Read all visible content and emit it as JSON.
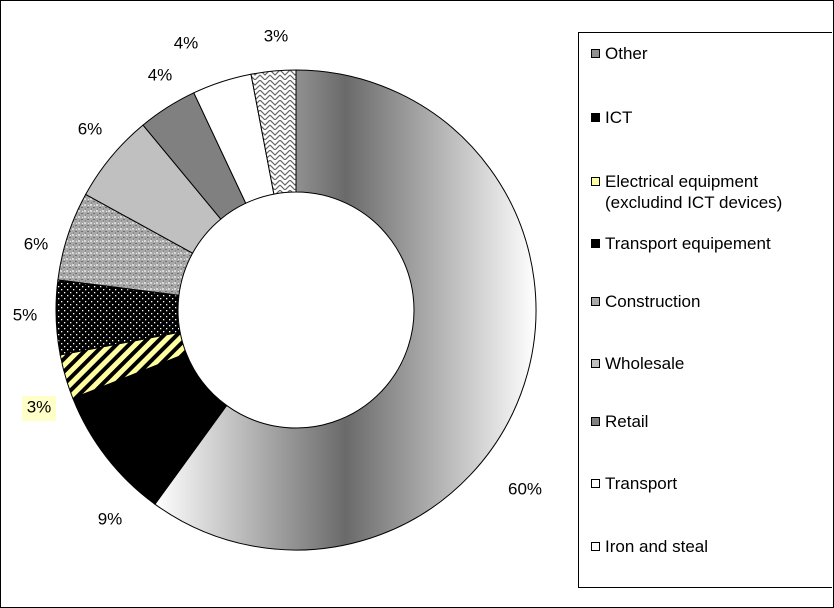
{
  "chart_data": {
    "type": "donut",
    "categories": [
      "Other",
      "ICT",
      "Electrical equipment (excludind ICT devices)",
      "Transport equipement",
      "Construction",
      "Wholesale",
      "Retail",
      "Transport",
      "Iron and steal"
    ],
    "values": [
      60,
      9,
      3,
      5,
      6,
      6,
      4,
      4,
      3
    ],
    "value_labels": [
      "60%",
      "9%",
      "3%",
      "5%",
      "6%",
      "6%",
      "4%",
      "4%",
      "3%"
    ],
    "colors": [
      "#909090",
      "#000000",
      "#ffffa0",
      "#000000",
      "#a8a8a8",
      "#c0c0c0",
      "#808080",
      "#ffffff",
      "#ffffff"
    ]
  }
}
